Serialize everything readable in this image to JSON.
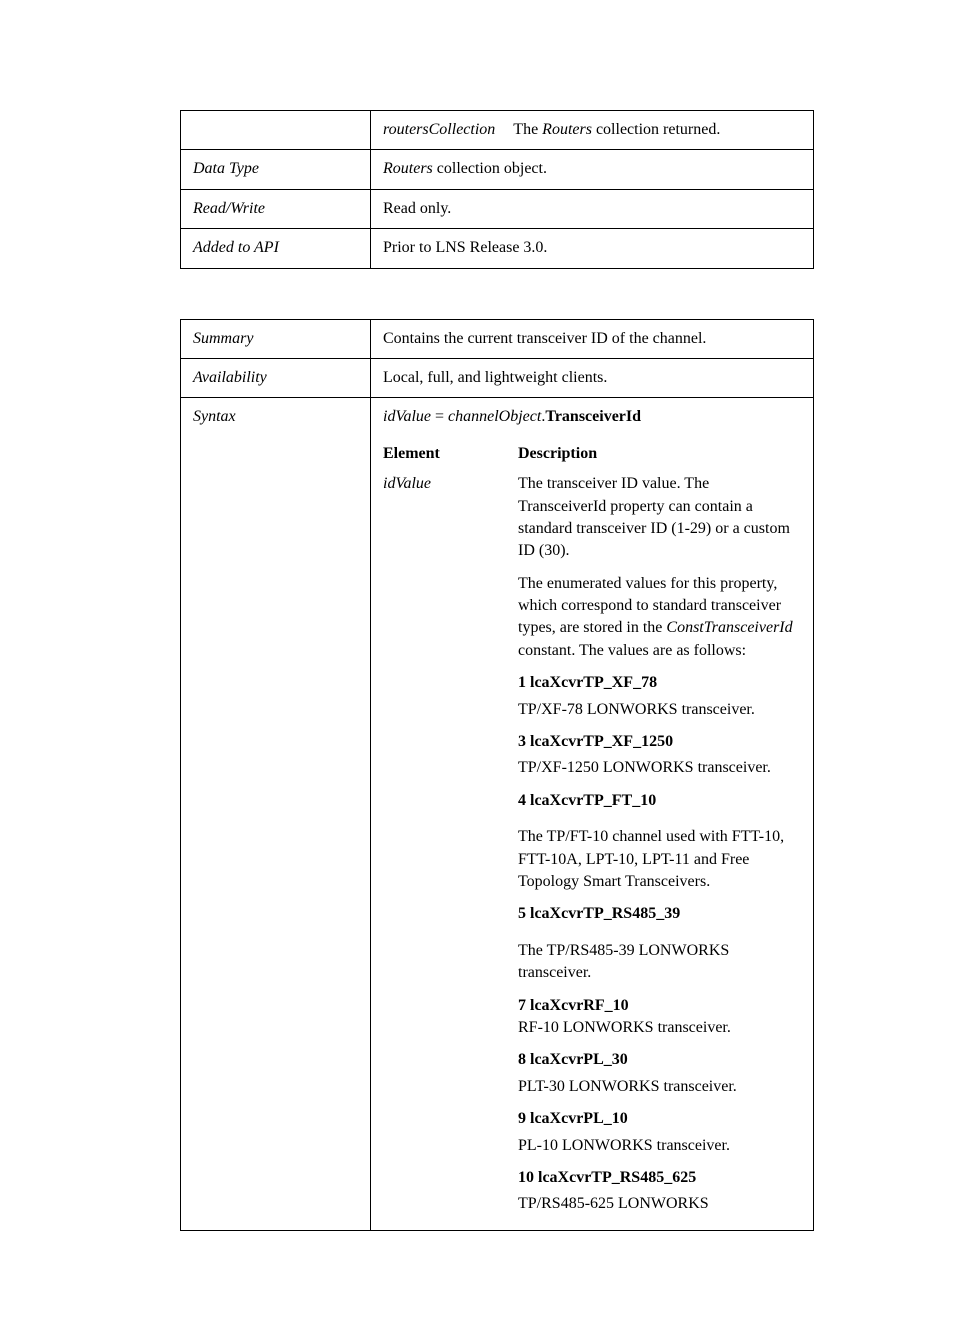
{
  "table1": {
    "row1_param_name": "routersCollection",
    "row1_param_desc_prefix": "The ",
    "row1_param_desc_italic": "Routers",
    "row1_param_desc_suffix": " collection returned.",
    "data_type_label": "Data Type",
    "data_type_value_italic": "Routers",
    "data_type_value_rest": " collection object.",
    "read_write_label": "Read/Write",
    "read_write_value": "Read only.",
    "added_label": "Added to API",
    "added_value": "Prior to LNS Release 3.0."
  },
  "table2": {
    "summary_label": "Summary",
    "summary_value": "Contains the current transceiver ID of the channel.",
    "availability_label": "Availability",
    "availability_value": "Local, full, and lightweight clients.",
    "syntax_label": "Syntax",
    "syntax_lhs": "idValue",
    "syntax_eq": " = ",
    "syntax_obj": "channelObject",
    "syntax_dot": ".",
    "syntax_prop": "TransceiverId",
    "element_hdr": "Element",
    "description_hdr": "Description",
    "idValue_name": "idValue",
    "idValue_desc1": "The transceiver ID value. The TransceiverId property can contain a standard transceiver ID (1-29) or a custom ID (30).",
    "idValue_desc2a": "The enumerated values for this property, which correspond to standard transceiver types, are stored in the ",
    "idValue_desc2_const": "ConstTransceiverId",
    "idValue_desc2b": " constant.  The values are as follows:",
    "enums": [
      {
        "num": "1",
        "name": "lcaXcvrTP_XF_78",
        "desc": "TP/XF-78 LONWORKS transceiver."
      },
      {
        "num": "3",
        "name": "lcaXcvrTP_XF_1250",
        "desc": "TP/XF-1250 LONWORKS transceiver."
      },
      {
        "num": "4",
        "name": "lcaXcvrTP_FT_10",
        "desc": "The TP/FT-10 channel used with FTT-10, FTT-10A, LPT-10, LPT-11 and Free Topology Smart Transceivers.",
        "gap": true
      },
      {
        "num": "5",
        "name": "lcaXcvrTP_RS485_39",
        "desc": "The TP/RS485-39 LONWORKS transceiver.",
        "gap": true
      },
      {
        "num": "7",
        "name": "lcaXcvrRF_10",
        "desc": "RF-10 LONWORKS transceiver.",
        "inline": true
      },
      {
        "num": "8",
        "name": "lcaXcvrPL_30",
        "desc": "PLT-30 LONWORKS transceiver."
      },
      {
        "num": "9",
        "name": "lcaXcvrPL_10",
        "desc": "PL-10 LONWORKS transceiver."
      },
      {
        "num": "10",
        "name": "lcaXcvrTP_RS485_625",
        "desc": "TP/RS485-625 LONWORKS"
      }
    ]
  }
}
